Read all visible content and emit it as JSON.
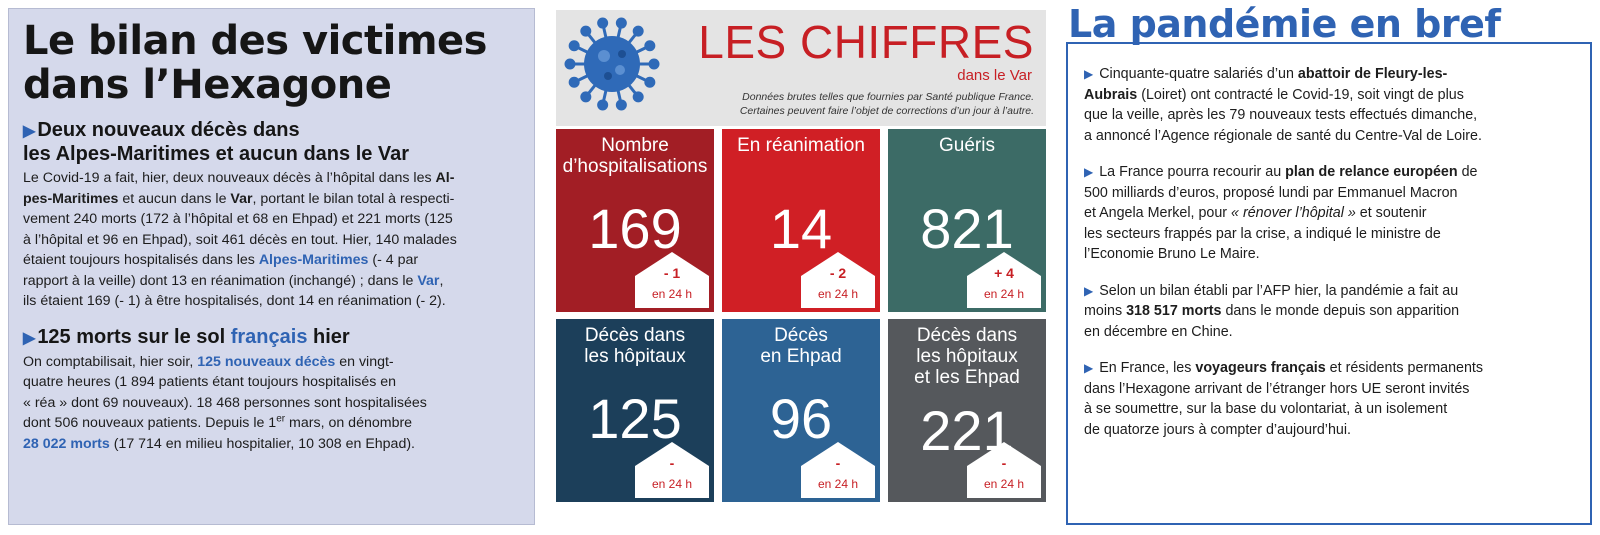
{
  "left": {
    "title_line1": "Le bilan des victimes",
    "title_line2": "dans l’Hexagone",
    "section1": {
      "heading_line1": "Deux nouveaux décès dans",
      "heading_line2": "les Alpes-Maritimes et aucun dans le Var",
      "t1": "Le Covid-19 a fait, hier,  deux nouveaux décès à l’hôpital dans les ",
      "b1": "Al-",
      "b1b": "pes-Maritimes",
      "t2": " et aucun dans le ",
      "b2": "Var",
      "t3": ", portant le bilan total à respecti-",
      "t3b": "vement 240 morts (172 à l’hôpital et 68 en Ehpad) et 221 morts (125",
      "t3c": "à l’hôpital et 96 en Ehpad), soit 461 décès en tout. Hier, 140 malades",
      "t3d": "étaient toujours hospitalisés dans les ",
      "b3": "Alpes-Maritimes",
      "t4": " (- 4 par",
      "t4b": "rapport à la veille) dont 13 en réanimation (inchangé) ; dans le ",
      "b4": "Var",
      "t5": ",",
      "t5b": "ils étaient 169 (- 1) à être hospitalisés, dont 14 en réanimation (- 2)."
    },
    "section2": {
      "heading_a": "125 morts sur le sol ",
      "heading_b": "français",
      "heading_c": " hier",
      "t1": "On comptabilisait, hier soir, ",
      "b1": "125 nouveaux décès",
      "t2": " en vingt-",
      "t2b": "quatre heures (1 894 patients étant toujours hospitalisés en",
      "t2c": "« réa » dont 69 nouveaux). 18 468 personnes sont hospitalisées",
      "t2d": "dont 506 nouveaux patients. Depuis le 1",
      "sup": "er",
      "t3": " mars, on dénombre",
      "b2": "28 022 morts",
      "t4": " (17 714 en milieu hospitalier, 10 308 en Ehpad)."
    }
  },
  "middle": {
    "title": "LES CHIFFRES",
    "subtitle": "dans le Var",
    "note_line1": "Données brutes telles que fournies par Santé publique France.",
    "note_line2": "Certaines peuvent faire l’objet de corrections d’un jour à l’autre.",
    "unit": "en 24 h",
    "tiles": [
      {
        "label1": "Nombre",
        "label2": "d’hospitalisations",
        "value": "169",
        "change": "- 1",
        "color": "#a21e25"
      },
      {
        "label1": "En réanimation",
        "label2": "",
        "value": "14",
        "change": "- 2",
        "color": "#d01f25"
      },
      {
        "label1": "Guéris",
        "label2": "",
        "value": "821",
        "change": "+ 4",
        "color": "#3c6b66"
      },
      {
        "label1": "Décès dans",
        "label2": "les hôpitaux",
        "value": "125",
        "change": "-",
        "color": "#1c3f5a"
      },
      {
        "label1": "Décès",
        "label2": "en Ehpad",
        "value": "96",
        "change": "-",
        "color": "#2d6394"
      },
      {
        "label1": "Décès dans",
        "label2": "les hôpitaux",
        "label3": "et les Ehpad",
        "value": "221",
        "change": "-",
        "color": "#55585c"
      }
    ]
  },
  "right": {
    "title": "La pandémie en bref",
    "p1": {
      "t1": "Cinquante-quatre salariés d’un ",
      "b1": "abattoir de Fleury-les-",
      "b1b": "Aubrais",
      "t2": " (Loiret) ont contracté le Covid-19, soit vingt de plus",
      "t2b": "que la veille, après les 79 nouveaux tests effectués dimanche,",
      "t2c": "a annoncé l’Agence régionale de santé du Centre-Val de Loire."
    },
    "p2": {
      "t1": "La France pourra recourir au ",
      "b1": "plan de relance européen",
      "t2": " de",
      "t2b": "500 milliards d’euros, proposé lundi par Emmanuel Macron",
      "t2c": "et Angela Merkel, pour ",
      "i1": "« rénover l’hôpital »",
      "t3": " et soutenir",
      "t3b": "les secteurs frappés par la crise, a indiqué le ministre de",
      "t3c": "l’Economie Bruno Le Maire."
    },
    "p3": {
      "t1": "Selon un bilan établi par l’AFP hier, la pandémie a fait au",
      "t1b": "moins ",
      "b1": "318 517 morts",
      "t2": " dans le monde depuis son apparition",
      "t2b": "en décembre en Chine."
    },
    "p4": {
      "t1": "En France, les ",
      "b1": "voyageurs français",
      "t2": " et résidents permanents",
      "t2b": "dans l’Hexagone arrivant de l’étranger hors UE seront invités",
      "t2c": "à se soumettre, sur la base du volontariat, à un isolement",
      "t2d": "de quatorze jours à compter d’aujourd’hui."
    }
  },
  "icons": {
    "bullet": "triangle-right-icon",
    "virus": "virus-icon",
    "house": "house-icon"
  },
  "colors": {
    "accent_blue": "#2f63b3",
    "accent_red": "#c71f24",
    "left_bg": "#d5d9eb"
  }
}
